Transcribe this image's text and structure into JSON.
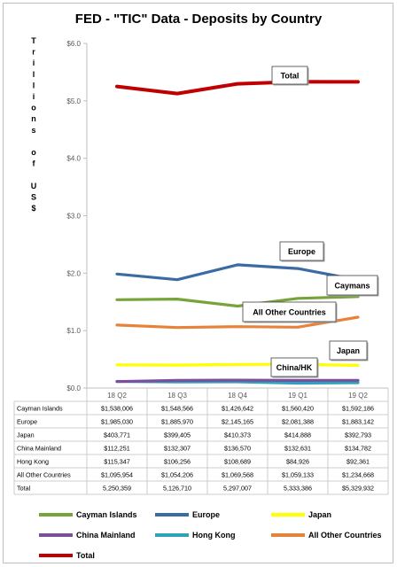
{
  "chart_data": {
    "type": "line",
    "title": "FED - \"TIC\" Data - Deposits by Country",
    "ylabel": "Trillions of US$",
    "ylim": [
      0,
      6
    ],
    "yticks": [
      "$0.0",
      "$1.0",
      "$2.0",
      "$3.0",
      "$4.0",
      "$5.0",
      "$6.0"
    ],
    "categories": [
      "18 Q2",
      "18 Q3",
      "18 Q4",
      "19 Q1",
      "19 Q2"
    ],
    "legend_position": "bottom",
    "grid": false,
    "series": [
      {
        "name": "Cayman Islands",
        "legend_label": "Cayman Islands",
        "callout": "Caymans",
        "color": "#77a33b",
        "values": [
          1.538006,
          1.548566,
          1.426642,
          1.56042,
          1.592186
        ],
        "labels": [
          "$1,538,006",
          "$1,548,566",
          "$1,426,642",
          "$1,560,420",
          "$1,592,186"
        ]
      },
      {
        "name": "Europe",
        "legend_label": "Europe",
        "callout": "Europe",
        "color": "#3b6ba5",
        "values": [
          1.98503,
          1.88597,
          2.145165,
          2.081388,
          1.883142
        ],
        "labels": [
          "$1,985,030",
          "$1,885,970",
          "$2,145,165",
          "$2,081,388",
          "$1,883,142"
        ]
      },
      {
        "name": "Japan",
        "legend_label": "Japan",
        "callout": "Japan",
        "color": "#ffff00",
        "values": [
          0.403771,
          0.399405,
          0.410373,
          0.414888,
          0.392793
        ],
        "labels": [
          "$403,771",
          "$399,405",
          "$410,373",
          "$414,888",
          "$392,793"
        ]
      },
      {
        "name": "China Mainland",
        "legend_label": "China Mainland",
        "callout": "",
        "color": "#7b4e9e",
        "values": [
          0.112251,
          0.132307,
          0.13657,
          0.132631,
          0.134782
        ],
        "labels": [
          "$112,251",
          "$132,307",
          "$136,570",
          "$132,631",
          "$134,782"
        ]
      },
      {
        "name": "Hong Kong",
        "legend_label": "Hong Kong",
        "callout": "China/HK",
        "color": "#2ca3b8",
        "values": [
          0.115347,
          0.106256,
          0.108689,
          0.084926,
          0.092361
        ],
        "labels": [
          "$115,347",
          "$106,256",
          "$108,689",
          "$84,926",
          "$92,361"
        ]
      },
      {
        "name": "All Other Countries",
        "legend_label": "All Other Countries",
        "callout": "All Other Countries",
        "color": "#e8823a",
        "values": [
          1.095954,
          1.054206,
          1.069568,
          1.059133,
          1.234668
        ],
        "labels": [
          "$1,095,954",
          "$1,054,206",
          "$1,069,568",
          "$1,059,133",
          "$1,234,668"
        ]
      },
      {
        "name": "Total",
        "legend_label": "Total",
        "callout": "Total",
        "color": "#c00000",
        "values": [
          5.250359,
          5.12671,
          5.297007,
          5.333386,
          5.329932
        ],
        "labels": [
          "5,250,359",
          "5,126,710",
          "5,297,007",
          "5,333,386",
          "$5,329,932"
        ]
      }
    ]
  }
}
